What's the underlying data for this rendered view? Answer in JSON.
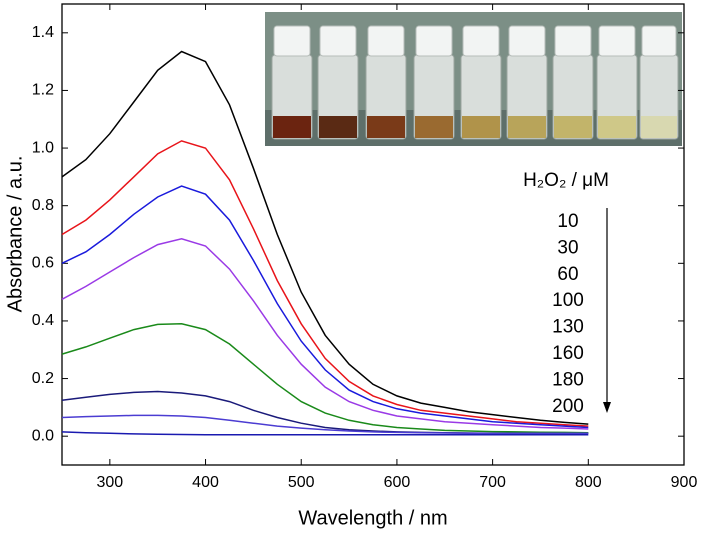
{
  "chart_data": {
    "type": "line",
    "x_label": "Wavelength / nm",
    "y_label": "Absorbance / a.u.",
    "legend_title": "H₂O₂ / μM",
    "x": [
      250,
      275,
      300,
      325,
      350,
      375,
      400,
      425,
      450,
      475,
      500,
      525,
      550,
      575,
      600,
      625,
      650,
      675,
      700,
      725,
      750,
      775,
      800
    ],
    "xlim": [
      250,
      900
    ],
    "xticks": [
      300,
      400,
      500,
      600,
      700,
      800,
      900
    ],
    "ylim": [
      -0.1,
      1.5
    ],
    "yticks": [
      {
        "value": 0,
        "label": "0.0"
      },
      0.2,
      0.4,
      0.6,
      0.8,
      {
        "value": 1,
        "label": "1.0"
      },
      1.2,
      1.4
    ],
    "series": [
      {
        "name": "10",
        "color": "#000000",
        "values": [
          0.9,
          0.96,
          1.05,
          1.16,
          1.27,
          1.335,
          1.3,
          1.15,
          0.93,
          0.7,
          0.5,
          0.35,
          0.25,
          0.18,
          0.14,
          0.115,
          0.1,
          0.085,
          0.075,
          0.065,
          0.055,
          0.048,
          0.042
        ]
      },
      {
        "name": "30",
        "color": "#e8141a",
        "values": [
          0.7,
          0.75,
          0.82,
          0.9,
          0.98,
          1.025,
          1.0,
          0.89,
          0.72,
          0.54,
          0.39,
          0.27,
          0.19,
          0.14,
          0.11,
          0.09,
          0.08,
          0.07,
          0.06,
          0.05,
          0.045,
          0.04,
          0.035
        ]
      },
      {
        "name": "60",
        "color": "#1a1adc",
        "values": [
          0.6,
          0.64,
          0.7,
          0.77,
          0.83,
          0.868,
          0.84,
          0.75,
          0.61,
          0.46,
          0.33,
          0.23,
          0.16,
          0.12,
          0.095,
          0.08,
          0.07,
          0.06,
          0.05,
          0.045,
          0.04,
          0.035,
          0.03
        ]
      },
      {
        "name": "100",
        "color": "#9a3ae6",
        "values": [
          0.475,
          0.52,
          0.57,
          0.62,
          0.665,
          0.685,
          0.66,
          0.58,
          0.47,
          0.35,
          0.25,
          0.17,
          0.12,
          0.09,
          0.07,
          0.06,
          0.05,
          0.045,
          0.04,
          0.035,
          0.03,
          0.028,
          0.025
        ]
      },
      {
        "name": "130",
        "color": "#1a8a1a",
        "values": [
          0.285,
          0.31,
          0.34,
          0.37,
          0.388,
          0.39,
          0.37,
          0.32,
          0.25,
          0.18,
          0.12,
          0.08,
          0.055,
          0.04,
          0.03,
          0.025,
          0.02,
          0.018,
          0.016,
          0.015,
          0.014,
          0.013,
          0.012
        ]
      },
      {
        "name": "160",
        "color": "#1a1a7a",
        "values": [
          0.125,
          0.135,
          0.145,
          0.152,
          0.155,
          0.15,
          0.14,
          0.12,
          0.09,
          0.065,
          0.045,
          0.03,
          0.022,
          0.018,
          0.015,
          0.013,
          0.012,
          0.011,
          0.01,
          0.01,
          0.01,
          0.01,
          0.01
        ]
      },
      {
        "name": "180",
        "color": "#4b3cd2",
        "values": [
          0.065,
          0.068,
          0.07,
          0.072,
          0.072,
          0.07,
          0.065,
          0.055,
          0.045,
          0.035,
          0.028,
          0.022,
          0.018,
          0.015,
          0.013,
          0.012,
          0.011,
          0.01,
          0.01,
          0.01,
          0.01,
          0.01,
          0.01
        ]
      },
      {
        "name": "200",
        "color": "#1a1ab0",
        "values": [
          0.015,
          0.012,
          0.01,
          0.008,
          0.007,
          0.006,
          0.005,
          0.005,
          0.005,
          0.005,
          0.005,
          0.005,
          0.005,
          0.005,
          0.005,
          0.005,
          0.005,
          0.005,
          0.005,
          0.005,
          0.005,
          0.005,
          0.005
        ]
      }
    ]
  }
}
